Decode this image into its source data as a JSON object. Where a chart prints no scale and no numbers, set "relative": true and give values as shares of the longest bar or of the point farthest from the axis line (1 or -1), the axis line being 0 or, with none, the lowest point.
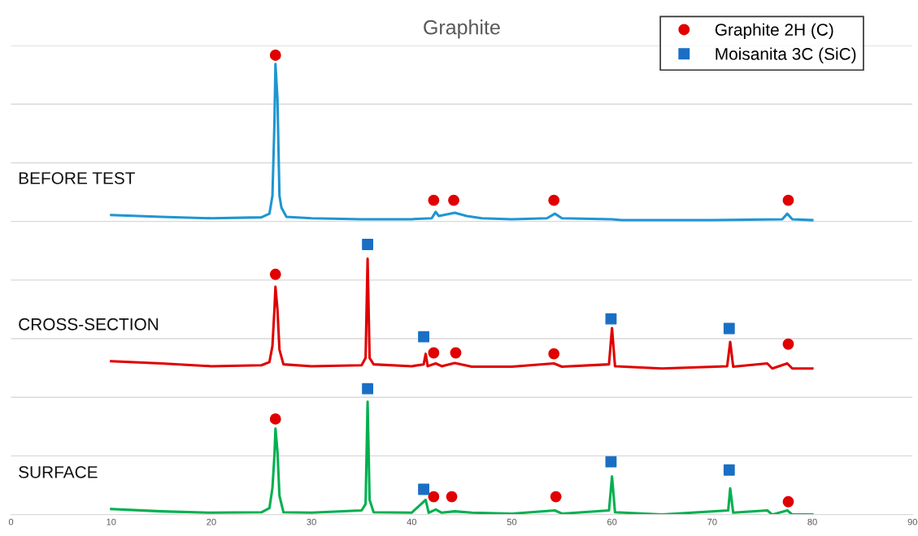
{
  "chart_data": {
    "type": "line",
    "title": "Graphite",
    "relative": true,
    "grid": "y",
    "legend": "top right",
    "xlim": [
      0,
      90
    ],
    "xticks": [
      0,
      10,
      20,
      30,
      40,
      50,
      60,
      70,
      80,
      90
    ],
    "series": [
      {
        "name": "BEFORE TEST",
        "color": "#1f96d2",
        "x": [
          10,
          15,
          20,
          25,
          25.8,
          26.1,
          26.3,
          26.4,
          26.6,
          26.8,
          27.0,
          27.5,
          30,
          35,
          40,
          42.0,
          42.4,
          42.7,
          44.3,
          45.5,
          47,
          50,
          53.5,
          54.3,
          55,
          60,
          61,
          70,
          77,
          77.5,
          78,
          80
        ],
        "values": [
          0.652,
          0.648,
          0.645,
          0.647,
          0.655,
          0.694,
          0.853,
          0.981,
          0.906,
          0.694,
          0.668,
          0.648,
          0.645,
          0.643,
          0.643,
          0.645,
          0.659,
          0.65,
          0.657,
          0.65,
          0.645,
          0.643,
          0.645,
          0.655,
          0.645,
          0.643,
          0.641,
          0.641,
          0.643,
          0.655,
          0.643,
          0.641
        ]
      },
      {
        "name": "CROSS-SECTION",
        "color": "#e00000",
        "x": [
          10,
          15,
          20,
          25,
          25.8,
          26.1,
          26.3,
          26.4,
          26.6,
          26.8,
          27.2,
          30,
          35,
          35.4,
          35.6,
          35.8,
          36.2,
          40,
          41.2,
          41.4,
          41.6,
          42.4,
          43,
          44.3,
          46,
          50,
          54.2,
          55,
          59.7,
          60.0,
          60.3,
          65,
          71.5,
          71.8,
          72.1,
          75.5,
          76,
          77.5,
          78,
          80
        ],
        "values": [
          0.334,
          0.329,
          0.323,
          0.325,
          0.332,
          0.367,
          0.447,
          0.496,
          0.447,
          0.359,
          0.327,
          0.323,
          0.325,
          0.341,
          0.557,
          0.341,
          0.327,
          0.323,
          0.327,
          0.35,
          0.323,
          0.329,
          0.323,
          0.33,
          0.322,
          0.322,
          0.329,
          0.322,
          0.327,
          0.406,
          0.323,
          0.318,
          0.323,
          0.376,
          0.322,
          0.329,
          0.318,
          0.329,
          0.318,
          0.318
        ]
      },
      {
        "name": "SURFACE",
        "color": "#00b050",
        "x": [
          10,
          15,
          20,
          25,
          25.8,
          26.1,
          26.3,
          26.4,
          26.6,
          26.8,
          27.2,
          30,
          35,
          35.4,
          35.6,
          35.8,
          36.2,
          40,
          41.4,
          41.7,
          42.4,
          43,
          44.3,
          46,
          50,
          54.3,
          55,
          59.7,
          60.0,
          60.3,
          65,
          71.6,
          71.8,
          72.1,
          75.5,
          76,
          77.5,
          78,
          80
        ],
        "values": [
          0.012,
          0.007,
          0.004,
          0.005,
          0.014,
          0.058,
          0.129,
          0.187,
          0.138,
          0.041,
          0.005,
          0.004,
          0.009,
          0.023,
          0.246,
          0.032,
          0.005,
          0.004,
          0.032,
          0.004,
          0.011,
          0.004,
          0.007,
          0.004,
          0.002,
          0.009,
          0.002,
          0.009,
          0.083,
          0.005,
          0.0,
          0.009,
          0.057,
          0.004,
          0.009,
          0.0,
          0.009,
          0.0,
          0.0
        ]
      },
      {
        "name": "Graphite 2H (C)",
        "type": "scatter",
        "marker": "circle",
        "color": "#e00000",
        "x": [
          26.4,
          42.2,
          44.2,
          54.2,
          77.6,
          26.4,
          42.2,
          44.4,
          54.2,
          77.6,
          26.4,
          42.2,
          44.0,
          54.4,
          77.6
        ],
        "values": [
          1.0,
          0.684,
          0.684,
          0.684,
          0.684,
          0.523,
          0.352,
          0.352,
          0.35,
          0.371,
          0.208,
          0.039,
          0.039,
          0.039,
          0.028
        ]
      },
      {
        "name": "Moisanita 3C (SiC)",
        "type": "scatter",
        "marker": "square",
        "color": "#1a6fc4",
        "x": [
          35.6,
          41.2,
          59.9,
          71.7,
          35.6,
          41.2,
          59.9,
          71.7
        ],
        "values": [
          0.588,
          0.387,
          0.426,
          0.405,
          0.274,
          0.055,
          0.115,
          0.097
        ]
      }
    ]
  }
}
